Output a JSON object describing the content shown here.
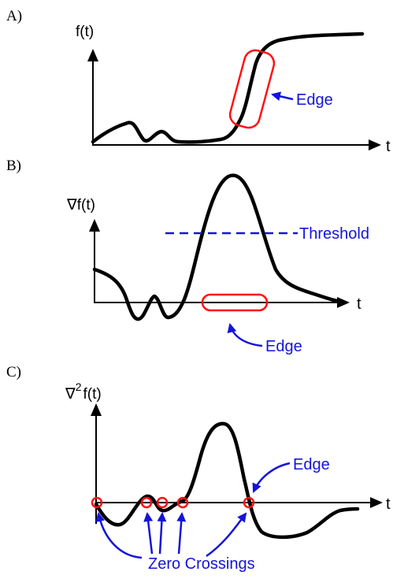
{
  "panels": {
    "a": {
      "letter": "A)",
      "ylabel": "f(t)",
      "xlabel": "t",
      "edge_label": "Edge"
    },
    "b": {
      "letter": "B)",
      "ylabel": "∇f(t)",
      "xlabel": "t",
      "threshold_label": "Threshold",
      "edge_label": "Edge"
    },
    "c": {
      "letter": "C)",
      "ylabel_base": "∇",
      "ylabel_sup": "2",
      "ylabel_rest": "f(t)",
      "xlabel": "t",
      "edge_label": "Edge",
      "zero_label": "Zero Crossings"
    }
  },
  "colors": {
    "curve": "#000000",
    "highlight": "#ff1010",
    "annotation": "#1414d9"
  }
}
